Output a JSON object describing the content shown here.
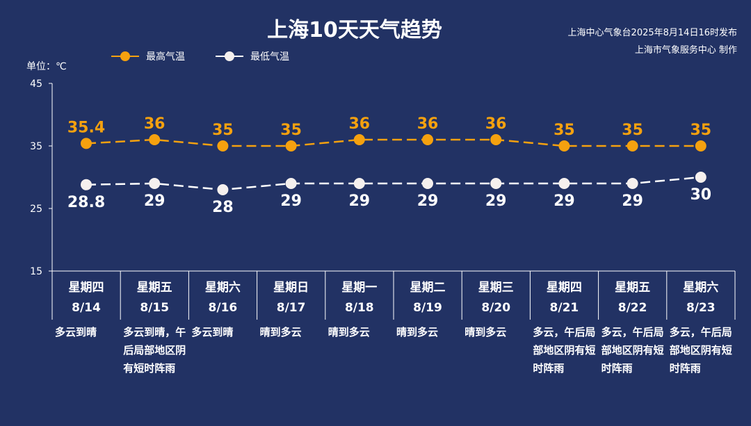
{
  "header": {
    "title": "上海10天天气趋势",
    "issuer_line1": "上海中心气象台2025年8月14日16时发布",
    "issuer_line2": "上海市气象服务中心 制作"
  },
  "legend": {
    "high_label": "最高气温",
    "low_label": "最低气温"
  },
  "unit_label": "单位：℃",
  "colors": {
    "background": "#223264",
    "high": "#f5a10f",
    "low": "#ffffff",
    "axis": "#ffffff"
  },
  "chart_data": {
    "type": "line",
    "categories": [
      "8/14",
      "8/15",
      "8/16",
      "8/17",
      "8/18",
      "8/19",
      "8/20",
      "8/21",
      "8/22",
      "8/23"
    ],
    "weekdays": [
      "星期四",
      "星期五",
      "星期六",
      "星期日",
      "星期一",
      "星期二",
      "星期三",
      "星期四",
      "星期五",
      "星期六"
    ],
    "weather": [
      "多云到晴",
      "多云到晴，午后局部地区阴有短时阵雨",
      "多云到晴",
      "晴到多云",
      "晴到多云",
      "晴到多云",
      "晴到多云",
      "多云，午后局部地区阴有短时阵雨",
      "多云，午后局部地区阴有短时阵雨",
      "多云，午后局部地区阴有短时阵雨"
    ],
    "series": [
      {
        "name": "最高气温",
        "values": [
          35.4,
          36,
          35,
          35,
          36,
          36,
          36,
          35,
          35,
          35
        ],
        "labels": [
          "35.4",
          "36",
          "35",
          "35",
          "36",
          "36",
          "36",
          "35",
          "35",
          "35"
        ]
      },
      {
        "name": "最低气温",
        "values": [
          28.8,
          29,
          28,
          29,
          29,
          29,
          29,
          29,
          29,
          30
        ],
        "labels": [
          "28.8",
          "29",
          "28",
          "29",
          "29",
          "29",
          "29",
          "29",
          "29",
          "30"
        ]
      }
    ],
    "ylim": [
      15,
      45
    ],
    "yticks": [
      15,
      25,
      35,
      45
    ],
    "ytick_labels": [
      "15",
      "25",
      "35",
      "45"
    ],
    "ylabel": "单位：℃",
    "grid": false,
    "legend_position": "top-left"
  }
}
